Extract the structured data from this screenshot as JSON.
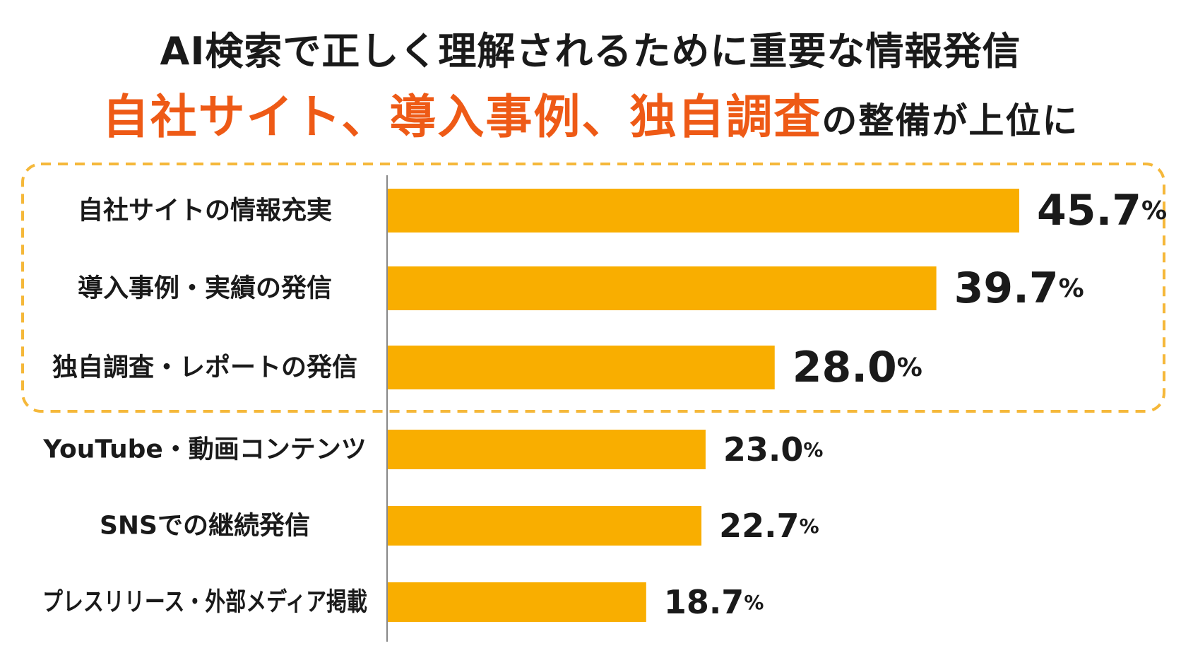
{
  "title": {
    "line1": "AI検索で正しく理解されるために重要な情報発信",
    "line2_highlight": "自社サイト、導入事例、独自調査",
    "line2_rest": "の整備が上位に"
  },
  "colors": {
    "bar": "#F9AE00",
    "highlight_text": "#EE5A16",
    "text": "#1A1A1A",
    "dashed_box": "#F5B83A",
    "axis": "#888888"
  },
  "chart_data": {
    "type": "bar",
    "orientation": "horizontal",
    "categories": [
      "自社サイトの情報充実",
      "導入事例・実績の発信",
      "独自調査・レポートの発信",
      "YouTube・動画コンテンツ",
      "SNSでの継続発信",
      "プレスリリース・外部メディア掲載"
    ],
    "values": [
      45.7,
      39.7,
      28.0,
      23.0,
      22.7,
      18.7
    ],
    "value_labels": [
      "45.7",
      "39.7",
      "28.0",
      "23.0",
      "22.7",
      "18.7"
    ],
    "unit": "%",
    "highlighted_count": 3,
    "xlim": [
      0,
      50
    ],
    "grid": false,
    "legend": "none"
  }
}
